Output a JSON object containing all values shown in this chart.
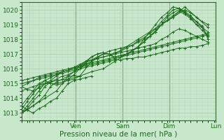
{
  "xlabel": "Pression niveau de la mer( hPa )",
  "ylim": [
    1012.5,
    1020.5
  ],
  "xlim": [
    0,
    100
  ],
  "yticks": [
    1013,
    1014,
    1015,
    1016,
    1017,
    1018,
    1019,
    1020
  ],
  "xtick_positions": [
    4,
    28,
    52,
    76,
    100
  ],
  "xtick_labels": [
    "",
    "Ven",
    "Sam",
    "Dim",
    "Lun"
  ],
  "bg_color": "#c8e8cc",
  "grid_color": "#b0ccb4",
  "line_color": "#1a6b1a",
  "lines": [
    {
      "x": [
        0,
        3,
        6,
        9,
        12,
        15,
        18,
        21,
        24,
        27,
        30,
        33,
        36,
        39,
        42,
        45,
        48,
        51,
        54,
        57,
        60,
        63,
        66,
        69,
        72,
        75,
        78,
        81,
        84,
        87,
        90,
        93,
        96
      ],
      "y": [
        1013.0,
        1013.2,
        1013.5,
        1013.8,
        1014.2,
        1014.8,
        1015.1,
        1015.3,
        1015.5,
        1015.8,
        1016.2,
        1016.5,
        1016.8,
        1017.0,
        1017.1,
        1017.0,
        1016.7,
        1016.8,
        1017.0,
        1017.2,
        1017.5,
        1017.8,
        1018.2,
        1018.5,
        1019.0,
        1019.5,
        1019.8,
        1020.0,
        1019.8,
        1019.5,
        1019.2,
        1018.9,
        1018.0
      ]
    },
    {
      "x": [
        0,
        3,
        6,
        9,
        12,
        15,
        18,
        21,
        24,
        27,
        30,
        33,
        36,
        39,
        42,
        45,
        48,
        51,
        54,
        57,
        60,
        63,
        66,
        69,
        72,
        75,
        78,
        81,
        84,
        87,
        90,
        93,
        96
      ],
      "y": [
        1013.0,
        1013.3,
        1013.8,
        1014.2,
        1014.8,
        1015.1,
        1015.3,
        1015.5,
        1015.6,
        1015.8,
        1016.0,
        1016.3,
        1016.5,
        1016.7,
        1016.8,
        1016.9,
        1017.1,
        1017.2,
        1017.4,
        1017.6,
        1017.9,
        1018.1,
        1018.4,
        1018.7,
        1019.2,
        1019.6,
        1020.0,
        1020.1,
        1019.9,
        1019.6,
        1019.2,
        1018.8,
        1018.2
      ]
    },
    {
      "x": [
        0,
        3,
        6,
        9,
        12,
        15,
        18,
        21,
        24,
        27,
        30,
        33,
        36,
        39,
        42,
        45,
        48,
        51,
        54,
        57,
        60,
        63,
        66,
        69,
        72,
        75,
        78,
        81,
        84,
        87,
        90,
        93,
        96
      ],
      "y": [
        1013.0,
        1013.5,
        1014.0,
        1014.5,
        1015.0,
        1015.2,
        1015.5,
        1015.8,
        1015.9,
        1016.0,
        1016.2,
        1016.4,
        1016.6,
        1016.8,
        1017.0,
        1017.2,
        1017.3,
        1017.4,
        1017.5,
        1017.6,
        1017.8,
        1018.0,
        1018.2,
        1018.5,
        1019.0,
        1019.3,
        1019.6,
        1019.9,
        1019.7,
        1019.4,
        1019.0,
        1018.6,
        1018.2
      ]
    },
    {
      "x": [
        0,
        3,
        6,
        9,
        12,
        15,
        18,
        21,
        24,
        27,
        30,
        33,
        36,
        39,
        42,
        45,
        48,
        51,
        54,
        57,
        60,
        63,
        66,
        69,
        72,
        75,
        78,
        81,
        84,
        87,
        90,
        93,
        96
      ],
      "y": [
        1013.5,
        1014.0,
        1014.5,
        1015.0,
        1015.2,
        1015.4,
        1015.6,
        1015.8,
        1015.9,
        1016.1,
        1016.3,
        1016.5,
        1016.6,
        1016.7,
        1016.8,
        1016.9,
        1017.0,
        1017.1,
        1017.2,
        1017.3,
        1017.4,
        1017.5,
        1017.6,
        1017.7,
        1018.0,
        1018.2,
        1018.5,
        1018.7,
        1018.6,
        1018.4,
        1018.2,
        1018.0,
        1017.8
      ]
    },
    {
      "x": [
        0,
        3,
        6,
        9,
        12,
        15,
        18,
        21,
        24,
        27,
        30,
        33,
        36,
        39,
        42,
        45,
        48,
        51,
        54,
        57,
        60,
        63,
        66,
        69,
        72,
        75,
        78,
        81,
        84,
        87,
        90,
        93,
        96
      ],
      "y": [
        1014.8,
        1015.0,
        1015.2,
        1015.3,
        1015.4,
        1015.5,
        1015.6,
        1015.7,
        1015.8,
        1015.9,
        1016.0,
        1016.1,
        1016.2,
        1016.3,
        1016.4,
        1016.5,
        1016.6,
        1016.6,
        1016.7,
        1016.7,
        1016.8,
        1016.8,
        1016.9,
        1017.0,
        1017.1,
        1017.2,
        1017.3,
        1017.4,
        1017.4,
        1017.5,
        1017.5,
        1017.6,
        1017.7
      ]
    },
    {
      "x": [
        0,
        3,
        6,
        9,
        12,
        15,
        18,
        21,
        24,
        27,
        30,
        33,
        36,
        39,
        42,
        45,
        48,
        51,
        54,
        57,
        60,
        63,
        66,
        69,
        72,
        75,
        78,
        81,
        84,
        87,
        90,
        93,
        96
      ],
      "y": [
        1015.2,
        1015.3,
        1015.4,
        1015.5,
        1015.6,
        1015.7,
        1015.8,
        1015.9,
        1016.0,
        1016.1,
        1016.2,
        1016.3,
        1016.4,
        1016.5,
        1016.6,
        1016.7,
        1016.8,
        1016.9,
        1017.0,
        1017.1,
        1017.2,
        1017.3,
        1017.4,
        1017.5,
        1017.6,
        1017.7,
        1017.8,
        1017.9,
        1018.0,
        1018.1,
        1018.2,
        1018.3,
        1018.4
      ]
    },
    {
      "x": [
        0,
        3,
        6,
        9,
        12,
        15,
        18,
        21,
        24,
        27,
        30,
        33,
        36,
        39,
        42,
        45,
        48,
        51,
        54,
        57,
        60,
        63,
        66,
        69,
        72,
        75,
        78,
        81,
        84,
        87,
        90,
        93,
        96
      ],
      "y": [
        1015.0,
        1015.1,
        1015.2,
        1015.4,
        1015.5,
        1015.6,
        1015.7,
        1015.8,
        1015.9,
        1016.0,
        1016.1,
        1016.2,
        1016.3,
        1016.4,
        1016.5,
        1016.6,
        1016.7,
        1016.8,
        1016.9,
        1017.0,
        1017.1,
        1017.2,
        1017.3,
        1017.4,
        1017.5,
        1017.6,
        1017.7,
        1017.8,
        1017.9,
        1018.0,
        1018.1,
        1018.2,
        1018.3
      ]
    },
    {
      "x": [
        0,
        6,
        12,
        18,
        24,
        30,
        36,
        42,
        48,
        54,
        60,
        66,
        72,
        78,
        84,
        90,
        96
      ],
      "y": [
        1013.0,
        1013.5,
        1014.0,
        1014.5,
        1015.5,
        1015.5,
        1016.5,
        1017.0,
        1017.0,
        1017.5,
        1018.0,
        1018.5,
        1019.0,
        1019.5,
        1020.2,
        1019.5,
        1018.8
      ]
    },
    {
      "x": [
        0,
        6,
        12,
        18,
        24,
        30,
        36,
        42,
        48,
        54,
        60,
        66,
        72,
        78,
        84,
        87,
        90,
        93,
        96
      ],
      "y": [
        1014.5,
        1014.8,
        1015.0,
        1015.2,
        1015.3,
        1015.5,
        1015.8,
        1016.0,
        1016.5,
        1017.0,
        1017.5,
        1018.2,
        1019.0,
        1019.5,
        1020.0,
        1019.8,
        1019.5,
        1019.2,
        1019.0
      ]
    },
    {
      "x": [
        0,
        3,
        6,
        9,
        12,
        15,
        18,
        21,
        24,
        27,
        30,
        33,
        36,
        39,
        42,
        45,
        48,
        51,
        54,
        57,
        60,
        63,
        66,
        69,
        72,
        75,
        78,
        81,
        84,
        87,
        90,
        93,
        96
      ],
      "y": [
        1013.2,
        1013.8,
        1014.3,
        1014.8,
        1015.2,
        1015.0,
        1014.9,
        1015.0,
        1015.3,
        1015.6,
        1016.0,
        1016.4,
        1016.8,
        1017.0,
        1017.1,
        1017.0,
        1016.8,
        1016.9,
        1017.0,
        1017.2,
        1017.5,
        1018.0,
        1018.5,
        1019.0,
        1019.5,
        1019.8,
        1020.2,
        1020.1,
        1019.8,
        1019.5,
        1019.0,
        1018.8,
        1018.5
      ]
    },
    {
      "x": [
        0,
        3,
        6,
        9,
        12,
        15,
        18,
        21,
        24,
        27,
        30
      ],
      "y": [
        1014.8,
        1014.6,
        1014.5,
        1014.7,
        1015.0,
        1015.0,
        1015.0,
        1015.1,
        1015.2,
        1015.3,
        1015.5
      ]
    },
    {
      "x": [
        0,
        3,
        6,
        9,
        12,
        15,
        18,
        21,
        24,
        27,
        30,
        33,
        36
      ],
      "y": [
        1013.5,
        1013.2,
        1013.0,
        1013.3,
        1013.5,
        1013.8,
        1014.0,
        1014.5,
        1015.0,
        1015.2,
        1015.3,
        1015.4,
        1015.5
      ]
    }
  ]
}
